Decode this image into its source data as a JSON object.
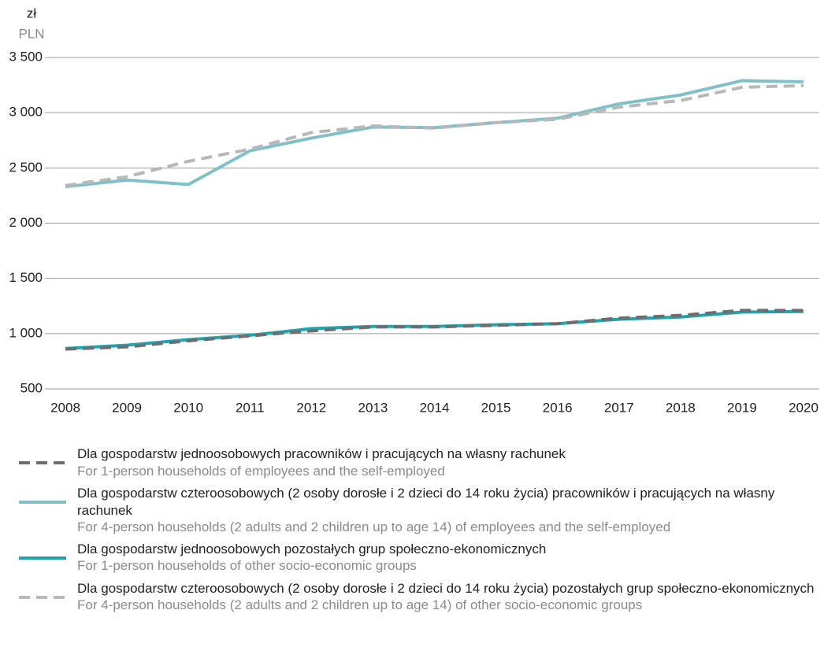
{
  "chart_data": {
    "type": "line",
    "y_label": "zł",
    "y_label_en": "PLN",
    "categories": [
      "2008",
      "2009",
      "2010",
      "2011",
      "2012",
      "2013",
      "2014",
      "2015",
      "2016",
      "2017",
      "2018",
      "2019",
      "2020"
    ],
    "ylim": [
      500,
      3500
    ],
    "yticks": [
      500,
      {
        "value": 1000,
        "label": "1 000"
      },
      {
        "value": 1500,
        "label": "1 500"
      },
      {
        "value": 2000,
        "label": "2 000"
      },
      {
        "value": 2500,
        "label": "2 500"
      },
      {
        "value": 3000,
        "label": "3 000"
      },
      {
        "value": 3500,
        "label": "3 500"
      }
    ],
    "grid": true,
    "series": [
      {
        "name": "Dla gospodarstw jednoosobowych pracowników i pracujących na własny rachunek",
        "name_en": "For 1-person households of employees and the self-employed",
        "color": "#6d6e70",
        "dash": true,
        "values": [
          860,
          880,
          935,
          980,
          1025,
          1060,
          1060,
          1075,
          1090,
          1140,
          1165,
          1210,
          1210
        ]
      },
      {
        "name": "Dla gospodarstw czteroosobowych (2 osoby dorosłe i 2 dzieci do 14 roku życia) pracowników i pracujących na własny rachunek",
        "name_en": "For 4-person households (2 adults and 2 children up to age 14) of employees and the self-employed",
        "color": "#7fc1c9",
        "dash": false,
        "values": [
          2330,
          2390,
          2350,
          2655,
          2770,
          2870,
          2865,
          2910,
          2950,
          3080,
          3160,
          3290,
          3280
        ]
      },
      {
        "name": "Dla gospodarstw jednoosobowych pozostałych grup społeczno-ekonomicznych",
        "name_en": "For 1-person households of other socio-economic groups",
        "color": "#1aa7b0",
        "dash": false,
        "values": [
          865,
          895,
          945,
          985,
          1045,
          1065,
          1065,
          1080,
          1090,
          1130,
          1150,
          1195,
          1200
        ]
      },
      {
        "name": "Dla gospodarstw czteroosobowych (2 osoby dorosłe i 2 dzieci do 14 roku życia) pozostałych grup społeczno-ekonomicznych",
        "name_en": "For 4-person households (2 adults and 2 children up to age 14) of other socio-economic groups",
        "color": "#b7b8ba",
        "dash": true,
        "values": [
          2340,
          2420,
          2560,
          2670,
          2820,
          2880,
          2860,
          2910,
          2940,
          3050,
          3110,
          3230,
          3245
        ]
      }
    ]
  }
}
